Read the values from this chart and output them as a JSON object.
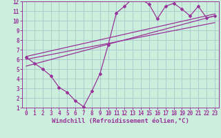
{
  "xlabel": "Windchill (Refroidissement éolien,°C)",
  "bg_color": "#cceedd",
  "grid_color": "#aacccc",
  "line_color": "#993399",
  "xlim": [
    -0.5,
    23.5
  ],
  "ylim": [
    1,
    12
  ],
  "xticks": [
    0,
    1,
    2,
    3,
    4,
    5,
    6,
    7,
    8,
    9,
    10,
    11,
    12,
    13,
    14,
    15,
    16,
    17,
    18,
    19,
    20,
    21,
    22,
    23
  ],
  "yticks": [
    1,
    2,
    3,
    4,
    5,
    6,
    7,
    8,
    9,
    10,
    11,
    12
  ],
  "series1_x": [
    0,
    1,
    2,
    3,
    4,
    5,
    6,
    7,
    8,
    9,
    10,
    11,
    12,
    13,
    14,
    15,
    16,
    17,
    18,
    19,
    20,
    21,
    22,
    23
  ],
  "series1_y": [
    6.2,
    5.6,
    5.0,
    4.3,
    3.1,
    2.6,
    1.7,
    1.1,
    2.7,
    4.5,
    7.5,
    10.8,
    11.5,
    12.3,
    12.2,
    11.7,
    10.2,
    11.5,
    11.8,
    11.2,
    10.5,
    11.5,
    10.3,
    10.5
  ],
  "line2_x": [
    0,
    23
  ],
  "line2_y": [
    6.3,
    10.7
  ],
  "line3_x": [
    0,
    23
  ],
  "line3_y": [
    6.0,
    9.8
  ],
  "line4_x": [
    0,
    23
  ],
  "line4_y": [
    5.3,
    10.5
  ],
  "xlabel_fontsize": 6.5,
  "tick_fontsize": 5.5
}
